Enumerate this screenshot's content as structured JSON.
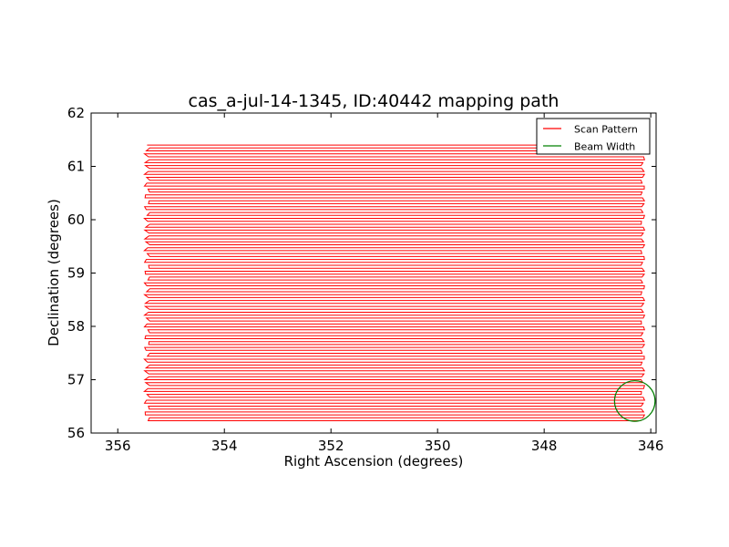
{
  "chart_data": {
    "type": "line",
    "title": "cas_a-jul-14-1345, ID:40442 mapping path",
    "xlabel": "Right Ascension (degrees)",
    "ylabel": "Declination (degrees)",
    "xlim": [
      356.5,
      345.9
    ],
    "ylim": [
      56,
      62
    ],
    "x_ticks": [
      356,
      354,
      352,
      350,
      348,
      346
    ],
    "y_ticks": [
      56,
      57,
      58,
      59,
      60,
      61,
      62
    ],
    "x_tick_labels": [
      "356",
      "354",
      "352",
      "350",
      "348",
      "346"
    ],
    "y_tick_labels": [
      "56",
      "57",
      "58",
      "59",
      "60",
      "61",
      "62"
    ],
    "grid": false,
    "legend_position": "top-right",
    "series": [
      {
        "name": "Scan Pattern",
        "color": "#ff0000",
        "scan": {
          "dec_start": 61.4,
          "dec_end": 56.22,
          "row_spacing": 0.055,
          "ra_left": 355.45,
          "ra_right": 346.15
        }
      },
      {
        "name": "Beam Width",
        "color": "#008000",
        "circle": {
          "ra": 346.3,
          "dec": 56.6,
          "radius_deg": 0.38
        }
      }
    ]
  }
}
